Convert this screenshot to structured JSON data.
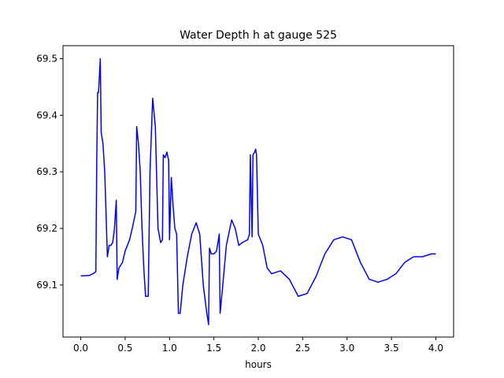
{
  "chart_data": {
    "type": "line",
    "title": "Water Depth h at gauge 525",
    "xlabel": "hours",
    "ylabel": "",
    "xlim": [
      -0.2,
      4.2
    ],
    "ylim": [
      69.008,
      69.523
    ],
    "xticks": [
      0.0,
      0.5,
      1.0,
      1.5,
      2.0,
      2.5,
      3.0,
      3.5,
      4.0
    ],
    "xtick_labels": [
      "0.0",
      "0.5",
      "1.0",
      "1.5",
      "2.0",
      "2.5",
      "3.0",
      "3.5",
      "4.0"
    ],
    "yticks": [
      69.1,
      69.2,
      69.3,
      69.4,
      69.5
    ],
    "ytick_labels": [
      "69.1",
      "69.2",
      "69.3",
      "69.4",
      "69.5"
    ],
    "grid": false,
    "legend": "none",
    "series": [
      {
        "color": "#0000ff",
        "points": [
          [
            0.0,
            69.116
          ],
          [
            0.1,
            69.117
          ],
          [
            0.15,
            69.121
          ],
          [
            0.17,
            69.124
          ],
          [
            0.18,
            69.32
          ],
          [
            0.19,
            69.44
          ],
          [
            0.2,
            69.44
          ],
          [
            0.22,
            69.5
          ],
          [
            0.23,
            69.37
          ],
          [
            0.25,
            69.35
          ],
          [
            0.27,
            69.3
          ],
          [
            0.28,
            69.25
          ],
          [
            0.3,
            69.15
          ],
          [
            0.32,
            69.17
          ],
          [
            0.34,
            69.17
          ],
          [
            0.36,
            69.175
          ],
          [
            0.38,
            69.2
          ],
          [
            0.4,
            69.25
          ],
          [
            0.41,
            69.11
          ],
          [
            0.43,
            69.13
          ],
          [
            0.47,
            69.14
          ],
          [
            0.5,
            69.16
          ],
          [
            0.55,
            69.18
          ],
          [
            0.58,
            69.2
          ],
          [
            0.62,
            69.23
          ],
          [
            0.63,
            69.38
          ],
          [
            0.65,
            69.35
          ],
          [
            0.67,
            69.3
          ],
          [
            0.69,
            69.2
          ],
          [
            0.71,
            69.13
          ],
          [
            0.73,
            69.08
          ],
          [
            0.76,
            69.08
          ],
          [
            0.78,
            69.3
          ],
          [
            0.81,
            69.43
          ],
          [
            0.84,
            69.38
          ],
          [
            0.87,
            69.2
          ],
          [
            0.9,
            69.175
          ],
          [
            0.92,
            69.18
          ],
          [
            0.93,
            69.33
          ],
          [
            0.95,
            69.325
          ],
          [
            0.97,
            69.335
          ],
          [
            0.99,
            69.32
          ],
          [
            1.0,
            69.18
          ],
          [
            1.02,
            69.29
          ],
          [
            1.04,
            69.24
          ],
          [
            1.06,
            69.2
          ],
          [
            1.08,
            69.19
          ],
          [
            1.1,
            69.05
          ],
          [
            1.12,
            69.05
          ],
          [
            1.15,
            69.1
          ],
          [
            1.2,
            69.15
          ],
          [
            1.25,
            69.19
          ],
          [
            1.3,
            69.21
          ],
          [
            1.34,
            69.19
          ],
          [
            1.38,
            69.1
          ],
          [
            1.42,
            69.05
          ],
          [
            1.44,
            69.03
          ],
          [
            1.45,
            69.165
          ],
          [
            1.47,
            69.155
          ],
          [
            1.5,
            69.155
          ],
          [
            1.53,
            69.16
          ],
          [
            1.56,
            69.19
          ],
          [
            1.57,
            69.05
          ],
          [
            1.6,
            69.1
          ],
          [
            1.64,
            69.17
          ],
          [
            1.7,
            69.215
          ],
          [
            1.74,
            69.2
          ],
          [
            1.78,
            69.17
          ],
          [
            1.82,
            69.175
          ],
          [
            1.88,
            69.18
          ],
          [
            1.9,
            69.19
          ],
          [
            1.91,
            69.33
          ],
          [
            1.93,
            69.185
          ],
          [
            1.94,
            69.33
          ],
          [
            1.96,
            69.335
          ],
          [
            1.97,
            69.34
          ],
          [
            1.98,
            69.33
          ],
          [
            2.0,
            69.19
          ],
          [
            2.05,
            69.17
          ],
          [
            2.1,
            69.13
          ],
          [
            2.15,
            69.12
          ],
          [
            2.25,
            69.125
          ],
          [
            2.35,
            69.11
          ],
          [
            2.45,
            69.08
          ],
          [
            2.55,
            69.085
          ],
          [
            2.65,
            69.115
          ],
          [
            2.75,
            69.155
          ],
          [
            2.85,
            69.18
          ],
          [
            2.95,
            69.185
          ],
          [
            3.05,
            69.18
          ],
          [
            3.15,
            69.14
          ],
          [
            3.25,
            69.11
          ],
          [
            3.35,
            69.105
          ],
          [
            3.45,
            69.11
          ],
          [
            3.55,
            69.12
          ],
          [
            3.65,
            69.14
          ],
          [
            3.75,
            69.15
          ],
          [
            3.85,
            69.15
          ],
          [
            3.95,
            69.155
          ],
          [
            4.0,
            69.155
          ]
        ]
      }
    ]
  }
}
